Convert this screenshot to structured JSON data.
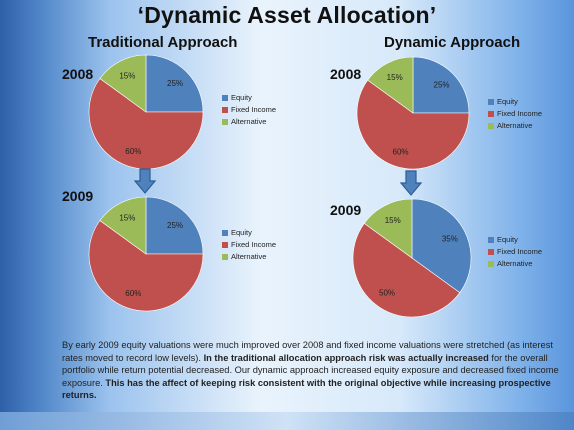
{
  "title": "‘Dynamic Asset Allocation’",
  "colors": {
    "equity": "#4f81bd",
    "fixed_income": "#c0504d",
    "alternative": "#9bbb59"
  },
  "legend": [
    "Equity",
    "Fixed Income",
    "Alternative"
  ],
  "chart_data": [
    {
      "type": "pie",
      "group": "Traditional Approach",
      "year": "2008",
      "categories": [
        "Equity",
        "Fixed Income",
        "Alternative"
      ],
      "values": [
        25,
        60,
        15
      ],
      "labels": [
        "25%",
        "60%",
        "15%"
      ]
    },
    {
      "type": "pie",
      "group": "Traditional Approach",
      "year": "2009",
      "categories": [
        "Equity",
        "Fixed Income",
        "Alternative"
      ],
      "values": [
        25,
        60,
        15
      ],
      "labels": [
        "25%",
        "60%",
        "15%"
      ]
    },
    {
      "type": "pie",
      "group": "Dynamic Approach",
      "year": "2008",
      "categories": [
        "Equity",
        "Fixed Income",
        "Alternative"
      ],
      "values": [
        25,
        60,
        15
      ],
      "labels": [
        "25%",
        "60%",
        "15%"
      ]
    },
    {
      "type": "pie",
      "group": "Dynamic Approach",
      "year": "2009",
      "categories": [
        "Equity",
        "Fixed Income",
        "Alternative"
      ],
      "values": [
        35,
        50,
        15
      ],
      "labels": [
        "35%",
        "50%",
        "15%"
      ]
    }
  ],
  "headings": {
    "traditional": "Traditional Approach",
    "dynamic": "Dynamic Approach"
  },
  "years": {
    "y2008": "2008",
    "y2009": "2009"
  },
  "body": {
    "p1": "By early 2009 equity valuations were much improved over 2008 and fixed income valuations were stretched (as interest rates moved to record low levels). ",
    "p2": "In the traditional allocation approach risk was actually increased",
    "p3": " for the overall portfolio while return potential decreased. Our dynamic approach increased equity exposure and decreased fixed income exposure. ",
    "p4": "This has the affect of keeping risk consistent with the original objective while increasing prospective returns."
  }
}
